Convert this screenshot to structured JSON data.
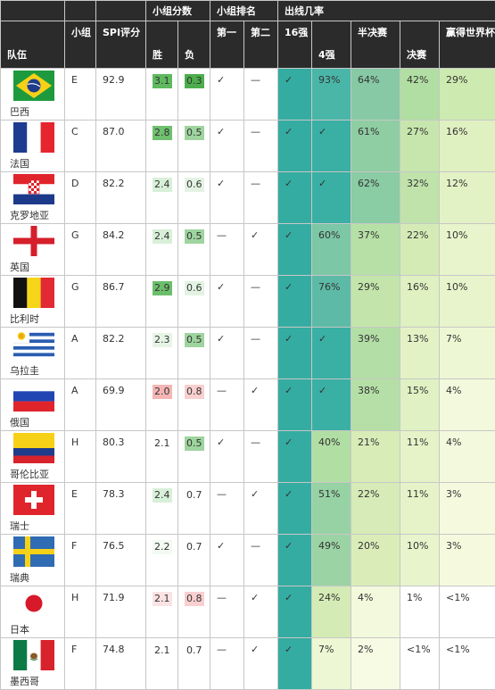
{
  "headers": {
    "group_points": "小组分数",
    "group_rank": "小组排名",
    "advance_prob": "出线几率",
    "team": "队伍",
    "group": "小组",
    "spi": "SPI评分",
    "win": "胜",
    "loss": "负",
    "first": "第一",
    "second": "第二",
    "r16": "16强",
    "r4": "4强",
    "semi": "半决赛",
    "final": "决赛",
    "champion": "赢得世界杯"
  },
  "rows": [
    {
      "team": "巴西",
      "flag": "brazil-flag",
      "group": "E",
      "spi": "92.9",
      "win": "3.1",
      "loss": "0.3",
      "first": "✓",
      "second": "—",
      "r16": "✓",
      "r4": "93%",
      "semi": "64%",
      "final": "42%",
      "champ": "29%",
      "win_bg": "#5fb95f",
      "loss_bg": "#4cae4c",
      "r4_bg": "#4ab6a8",
      "semi_bg": "#86c9a4",
      "final_bg": "#b1dea2",
      "champ_bg": "#cdeab0"
    },
    {
      "team": "法国",
      "flag": "france-flag",
      "group": "C",
      "spi": "87.0",
      "win": "2.8",
      "loss": "0.5",
      "first": "✓",
      "second": "—",
      "r16": "✓",
      "r4": "✓",
      "semi": "61%",
      "final": "27%",
      "champ": "16%",
      "win_bg": "#6fc06f",
      "loss_bg": "#9ed49e",
      "r4_bg": "#3aafa3",
      "semi_bg": "#8fcda3",
      "final_bg": "#c7e6ad",
      "champ_bg": "#dff0c1"
    },
    {
      "team": "克罗地亚",
      "flag": "croatia-flag",
      "group": "D",
      "spi": "82.2",
      "win": "2.4",
      "loss": "0.6",
      "first": "✓",
      "second": "—",
      "r16": "✓",
      "r4": "✓",
      "semi": "62%",
      "final": "32%",
      "champ": "12%",
      "win_bg": "#d8efd8",
      "loss_bg": "#e3f3e3",
      "r4_bg": "#3aafa3",
      "semi_bg": "#8acca3",
      "final_bg": "#bfe3aa",
      "champ_bg": "#e3f2c5"
    },
    {
      "team": "英国",
      "flag": "england-flag",
      "group": "G",
      "spi": "84.2",
      "win": "2.4",
      "loss": "0.5",
      "first": "—",
      "second": "✓",
      "r16": "✓",
      "r4": "60%",
      "semi": "37%",
      "final": "22%",
      "champ": "10%",
      "win_bg": "#d8efd8",
      "loss_bg": "#9ed49e",
      "r4_bg": "#7cc7a5",
      "semi_bg": "#b7e0a6",
      "final_bg": "#d5ebb6",
      "champ_bg": "#e8f4cb"
    },
    {
      "team": "比利时",
      "flag": "belgium-flag",
      "group": "G",
      "spi": "86.7",
      "win": "2.9",
      "loss": "0.6",
      "first": "✓",
      "second": "—",
      "r16": "✓",
      "r4": "76%",
      "semi": "29%",
      "final": "16%",
      "champ": "10%",
      "win_bg": "#6bbf6b",
      "loss_bg": "#e3f3e3",
      "r4_bg": "#5dbaa6",
      "semi_bg": "#c3e5ab",
      "final_bg": "#dff0c1",
      "champ_bg": "#e8f4cb"
    },
    {
      "team": "乌拉圭",
      "flag": "uruguay-flag",
      "group": "A",
      "spi": "82.2",
      "win": "2.3",
      "loss": "0.5",
      "first": "✓",
      "second": "—",
      "r16": "✓",
      "r4": "✓",
      "semi": "39%",
      "final": "13%",
      "champ": "7%",
      "win_bg": "#e6f5e6",
      "loss_bg": "#9ed49e",
      "r4_bg": "#3aafa3",
      "semi_bg": "#b3dea5",
      "final_bg": "#e3f2c5",
      "champ_bg": "#eef7d3"
    },
    {
      "team": "俄国",
      "flag": "russia-flag",
      "group": "A",
      "spi": "69.9",
      "win": "2.0",
      "loss": "0.8",
      "first": "—",
      "second": "✓",
      "r16": "✓",
      "r4": "✓",
      "semi": "38%",
      "final": "15%",
      "champ": "4%",
      "win_bg": "#f5b5b5",
      "loss_bg": "#f9cfcf",
      "r4_bg": "#3aafa3",
      "semi_bg": "#b5dfa6",
      "final_bg": "#e0f1c3",
      "champ_bg": "#f3f9dc"
    },
    {
      "team": "哥伦比亚",
      "flag": "colombia-flag",
      "group": "H",
      "spi": "80.3",
      "win": "2.1",
      "loss": "0.5",
      "first": "✓",
      "second": "—",
      "r16": "✓",
      "r4": "40%",
      "semi": "21%",
      "final": "11%",
      "champ": "4%",
      "win_bg": "#ffffff",
      "loss_bg": "#9ed49e",
      "r4_bg": "#b1dea3",
      "semi_bg": "#d8ecb8",
      "final_bg": "#e6f3c8",
      "champ_bg": "#f3f9dc"
    },
    {
      "team": "瑞士",
      "flag": "switzerland-flag",
      "group": "E",
      "spi": "78.3",
      "win": "2.4",
      "loss": "0.7",
      "first": "—",
      "second": "✓",
      "r16": "✓",
      "r4": "51%",
      "semi": "22%",
      "final": "11%",
      "champ": "3%",
      "win_bg": "#d8efd8",
      "loss_bg": "#ffffff",
      "r4_bg": "#97d2a4",
      "semi_bg": "#d6ebb7",
      "final_bg": "#e6f3c8",
      "champ_bg": "#f5fade"
    },
    {
      "team": "瑞典",
      "flag": "sweden-flag",
      "group": "F",
      "spi": "76.5",
      "win": "2.2",
      "loss": "0.7",
      "first": "✓",
      "second": "—",
      "r16": "✓",
      "r4": "49%",
      "semi": "20%",
      "final": "10%",
      "champ": "3%",
      "win_bg": "#f2faf2",
      "loss_bg": "#ffffff",
      "r4_bg": "#9cd3a4",
      "semi_bg": "#daedb9",
      "final_bg": "#e8f4cb",
      "champ_bg": "#f5fade"
    },
    {
      "team": "日本",
      "flag": "japan-flag",
      "group": "H",
      "spi": "71.9",
      "win": "2.1",
      "loss": "0.8",
      "first": "—",
      "second": "✓",
      "r16": "✓",
      "r4": "24%",
      "semi": "4%",
      "final": "1%",
      "champ": "<1%",
      "win_bg": "#fbe3e3",
      "loss_bg": "#f9cfcf",
      "r4_bg": "#d4ebb6",
      "semi_bg": "#f3f9dc",
      "final_bg": "#ffffff",
      "champ_bg": "#ffffff"
    },
    {
      "team": "墨西哥",
      "flag": "mexico-flag",
      "group": "F",
      "spi": "74.8",
      "win": "2.1",
      "loss": "0.7",
      "first": "—",
      "second": "✓",
      "r16": "✓",
      "r4": "7%",
      "semi": "2%",
      "final": "<1%",
      "champ": "<1%",
      "win_bg": "#ffffff",
      "loss_bg": "#ffffff",
      "r4_bg": "#eef7d3",
      "semi_bg": "#f7fbe4",
      "final_bg": "#ffffff",
      "champ_bg": "#ffffff"
    }
  ],
  "colors": {
    "header_bg": "#2b2b2b",
    "r16_bg": "#35aca2"
  }
}
